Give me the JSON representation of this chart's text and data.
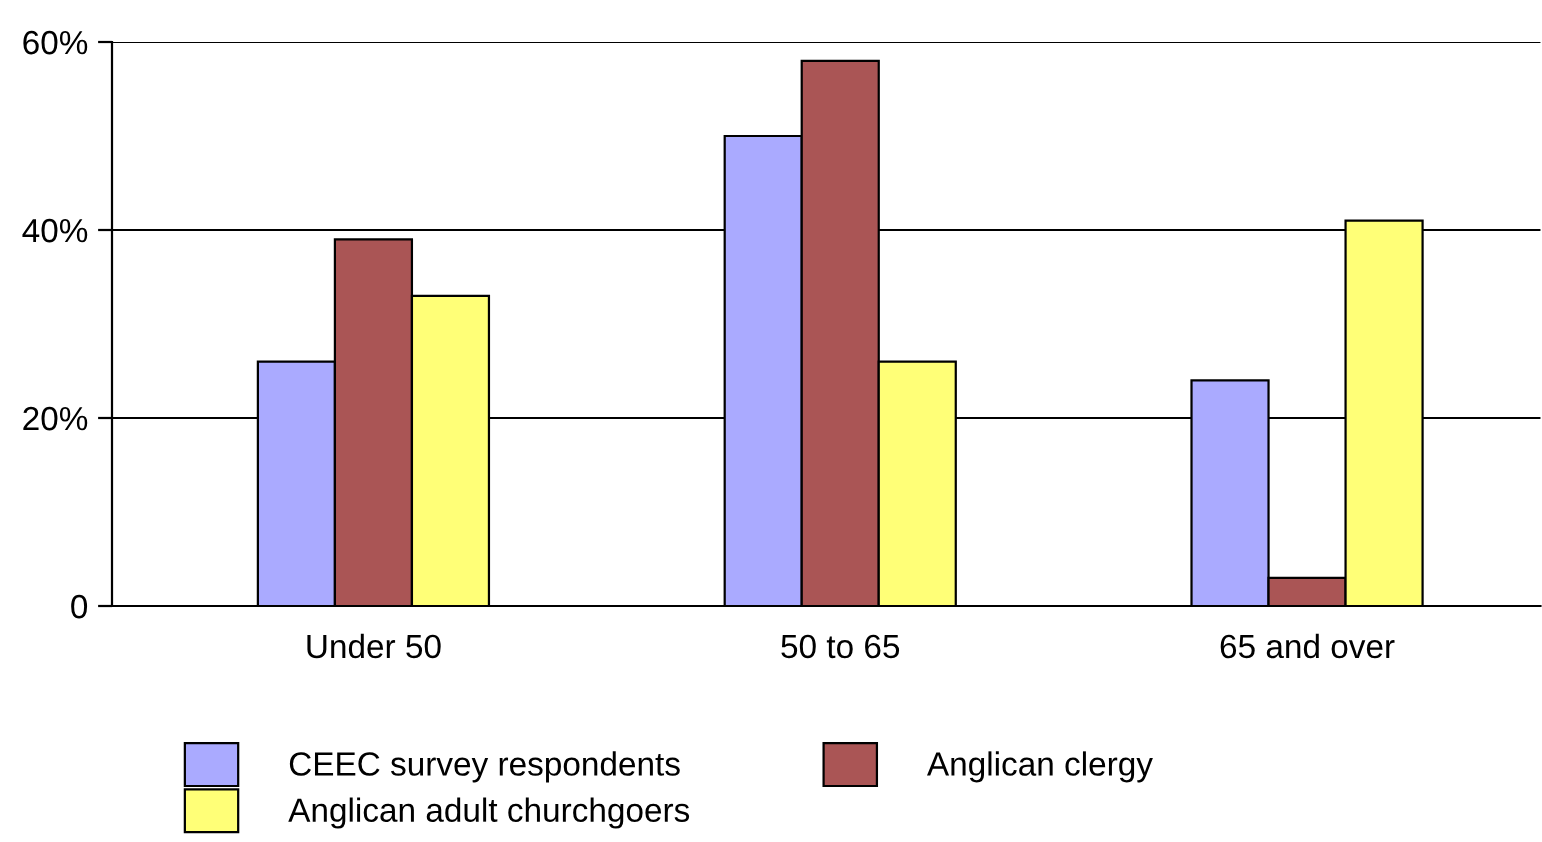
{
  "chart_data": {
    "type": "bar",
    "categories": [
      "Under 50",
      "50 to 65",
      "65 and over"
    ],
    "series": [
      {
        "name": "CEEC survey respondents",
        "color": "#aaaaff",
        "values": [
          26,
          50,
          24
        ]
      },
      {
        "name": "Anglican clergy",
        "color": "#aa5555",
        "values": [
          39,
          58,
          3
        ]
      },
      {
        "name": "Anglican adult churchgoers",
        "color": "#ffff77",
        "values": [
          33,
          26,
          41
        ]
      }
    ],
    "ylim": [
      0,
      60
    ],
    "yticks": [
      0,
      {
        "value": 20,
        "label": "20%"
      },
      {
        "value": 40,
        "label": "40%"
      },
      {
        "value": 60,
        "label": "60%"
      }
    ],
    "grid": "y",
    "legend": "bottom"
  }
}
